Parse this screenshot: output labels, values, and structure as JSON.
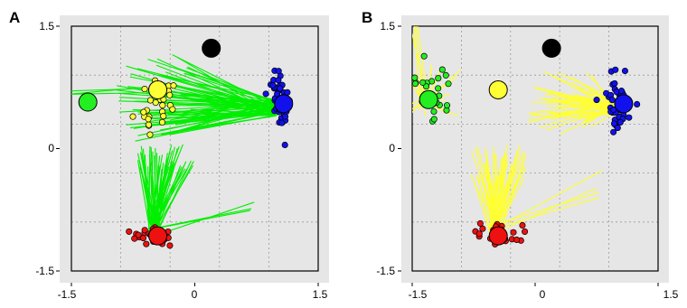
{
  "chart_data": [
    {
      "type": "scatter",
      "panel_label": "A",
      "xlim": [
        -1.5,
        1.5
      ],
      "ylim": [
        -1.5,
        1.5
      ],
      "x_ticks": [
        "-1.5",
        "0",
        "1.5"
      ],
      "y_ticks": [
        "1.5",
        "0",
        "-1.5"
      ],
      "grid": true,
      "ray_color": "#00ee00",
      "targets": [
        {
          "color": "#000000",
          "x": 0.2,
          "y": 1.23
        },
        {
          "color": "#22ee22",
          "x": -1.3,
          "y": 0.57
        },
        {
          "color": "#ffff33",
          "x": -0.45,
          "y": 0.72
        },
        {
          "color": "#1111ee",
          "x": 1.08,
          "y": 0.55
        },
        {
          "color": "#ee1111",
          "x": -0.45,
          "y": -1.07
        }
      ],
      "clusters": [
        {
          "color": "#ffff33",
          "cx": -0.45,
          "cy": 0.55,
          "sx": 0.12,
          "sy": 0.22,
          "n": 26,
          "seed": 11
        },
        {
          "color": "#1111ee",
          "cx": 1.05,
          "cy": 0.6,
          "sx": 0.07,
          "sy": 0.18,
          "n": 42,
          "seed": 12
        },
        {
          "color": "#ee1111",
          "cx": -0.5,
          "cy": -1.07,
          "sx": 0.13,
          "sy": 0.05,
          "n": 30,
          "seed": 13
        }
      ],
      "rays": [
        {
          "target": [
            1.0,
            0.5
          ],
          "source": [
            -0.5,
            0.6
          ],
          "spread": [
            0.45,
            0.55
          ],
          "n": 70,
          "seed": 21
        },
        {
          "target": [
            -0.5,
            -1.0
          ],
          "source": [
            -0.35,
            -0.1
          ],
          "spread": [
            0.35,
            0.15
          ],
          "n": 55,
          "seed": 22
        },
        {
          "target": [
            -1.6,
            0.66
          ],
          "source": [
            -0.6,
            0.7
          ],
          "spread": [
            0.05,
            0.06
          ],
          "n": 3,
          "seed": 23
        },
        {
          "target": [
            -0.5,
            -1.0
          ],
          "source": [
            0.7,
            -0.75
          ],
          "spread": [
            0.05,
            0.1
          ],
          "n": 3,
          "seed": 24
        }
      ]
    },
    {
      "type": "scatter",
      "panel_label": "B",
      "xlim": [
        -1.5,
        1.5
      ],
      "ylim": [
        -1.5,
        1.5
      ],
      "x_ticks": [
        "-1.5",
        "0",
        "1.5"
      ],
      "y_ticks": [
        "1.5",
        "0",
        "-1.5"
      ],
      "grid": true,
      "ray_color": "#ffff33",
      "targets": [
        {
          "color": "#000000",
          "x": 0.2,
          "y": 1.23
        },
        {
          "color": "#ffff33",
          "x": -0.45,
          "y": 0.72
        },
        {
          "color": "#22ee22",
          "x": -1.3,
          "y": 0.6
        },
        {
          "color": "#1111ee",
          "x": 1.08,
          "y": 0.55
        },
        {
          "color": "#ee1111",
          "x": -0.45,
          "y": -1.07
        }
      ],
      "clusters": [
        {
          "color": "#22ee22",
          "cx": -1.3,
          "cy": 0.7,
          "sx": 0.15,
          "sy": 0.2,
          "n": 24,
          "seed": 31
        },
        {
          "color": "#1111ee",
          "cx": 1.0,
          "cy": 0.6,
          "sx": 0.09,
          "sy": 0.18,
          "n": 40,
          "seed": 32
        },
        {
          "color": "#ee1111",
          "cx": -0.45,
          "cy": -1.05,
          "sx": 0.15,
          "sy": 0.07,
          "n": 26,
          "seed": 33
        }
      ],
      "rays": [
        {
          "target": [
            1.0,
            0.5
          ],
          "source": [
            0.3,
            0.55
          ],
          "spread": [
            0.4,
            0.4
          ],
          "n": 60,
          "seed": 41
        },
        {
          "target": [
            -0.5,
            -1.0
          ],
          "source": [
            -0.45,
            -0.2
          ],
          "spread": [
            0.35,
            0.25
          ],
          "n": 55,
          "seed": 42
        },
        {
          "target": [
            -1.35,
            0.6
          ],
          "source": [
            -1.25,
            0.7
          ],
          "spread": [
            0.35,
            0.35
          ],
          "n": 22,
          "seed": 43
        },
        {
          "target": [
            -1.35,
            0.6
          ],
          "source": [
            -1.5,
            1.6
          ],
          "spread": [
            0.08,
            0.1
          ],
          "n": 4,
          "seed": 44
        },
        {
          "target": [
            -0.5,
            -1.0
          ],
          "source": [
            0.8,
            -0.4
          ],
          "spread": [
            0.1,
            0.3
          ],
          "n": 4,
          "seed": 45
        }
      ]
    }
  ]
}
